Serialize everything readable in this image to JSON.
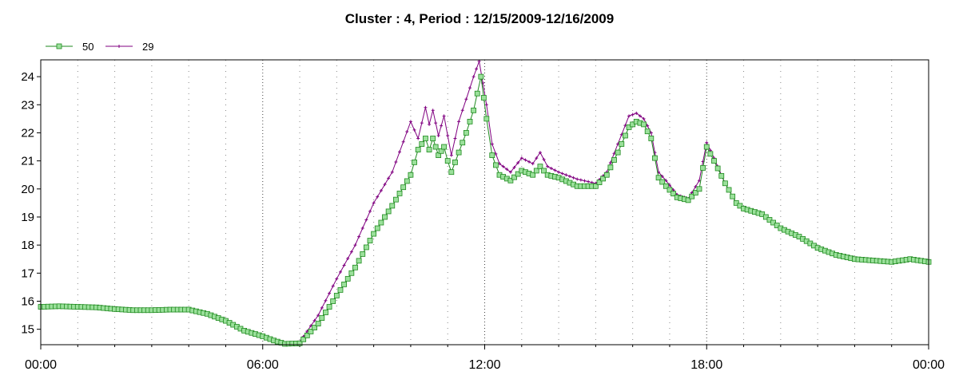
{
  "chart_data": {
    "type": "line",
    "title": "Cluster : 4, Period : 12/15/2009-12/16/2009",
    "xlabel": "",
    "ylabel": "",
    "x_tick_labels": [
      "00:00",
      "06:00",
      "12:00",
      "18:00",
      "00:00"
    ],
    "y_ticks": [
      15,
      16,
      17,
      18,
      19,
      20,
      21,
      22,
      23,
      24
    ],
    "xlim_hours": [
      0,
      24
    ],
    "ylim": [
      14.45,
      24.6
    ],
    "grid": "dotted-vertical",
    "legend_position": "top-left",
    "series": [
      {
        "name": "50",
        "color": "#1e8a1e",
        "marker_fill": "#9be09b",
        "marker": "square",
        "points": [
          [
            0.0,
            15.8
          ],
          [
            0.5,
            15.82
          ],
          [
            1.0,
            15.8
          ],
          [
            1.5,
            15.78
          ],
          [
            2.0,
            15.72
          ],
          [
            2.5,
            15.68
          ],
          [
            3.0,
            15.68
          ],
          [
            3.5,
            15.7
          ],
          [
            4.0,
            15.7
          ],
          [
            4.5,
            15.55
          ],
          [
            5.0,
            15.3
          ],
          [
            5.5,
            14.95
          ],
          [
            6.0,
            14.75
          ],
          [
            6.3,
            14.6
          ],
          [
            6.6,
            14.48
          ],
          [
            7.0,
            14.5
          ],
          [
            7.5,
            15.2
          ],
          [
            8.0,
            16.2
          ],
          [
            8.5,
            17.2
          ],
          [
            9.0,
            18.4
          ],
          [
            9.5,
            19.4
          ],
          [
            10.0,
            20.5
          ],
          [
            10.2,
            21.4
          ],
          [
            10.4,
            21.8
          ],
          [
            10.5,
            21.4
          ],
          [
            10.6,
            21.8
          ],
          [
            10.75,
            21.2
          ],
          [
            10.9,
            21.5
          ],
          [
            11.0,
            21.0
          ],
          [
            11.1,
            20.6
          ],
          [
            11.3,
            21.3
          ],
          [
            11.5,
            22.0
          ],
          [
            11.7,
            22.8
          ],
          [
            11.9,
            24.0
          ],
          [
            12.05,
            22.5
          ],
          [
            12.2,
            21.2
          ],
          [
            12.4,
            20.5
          ],
          [
            12.7,
            20.3
          ],
          [
            13.0,
            20.65
          ],
          [
            13.3,
            20.5
          ],
          [
            13.5,
            20.8
          ],
          [
            13.7,
            20.5
          ],
          [
            14.0,
            20.4
          ],
          [
            14.5,
            20.1
          ],
          [
            15.0,
            20.1
          ],
          [
            15.3,
            20.5
          ],
          [
            15.6,
            21.3
          ],
          [
            15.9,
            22.2
          ],
          [
            16.1,
            22.4
          ],
          [
            16.3,
            22.3
          ],
          [
            16.5,
            21.8
          ],
          [
            16.7,
            20.4
          ],
          [
            16.9,
            20.1
          ],
          [
            17.2,
            19.7
          ],
          [
            17.5,
            19.6
          ],
          [
            17.8,
            20.0
          ],
          [
            18.0,
            21.5
          ],
          [
            18.2,
            21.0
          ],
          [
            18.5,
            20.2
          ],
          [
            18.8,
            19.5
          ],
          [
            19.0,
            19.3
          ],
          [
            19.5,
            19.1
          ],
          [
            20.0,
            18.6
          ],
          [
            20.5,
            18.3
          ],
          [
            21.0,
            17.9
          ],
          [
            21.5,
            17.65
          ],
          [
            22.0,
            17.5
          ],
          [
            22.5,
            17.45
          ],
          [
            23.0,
            17.4
          ],
          [
            23.5,
            17.5
          ],
          [
            24.0,
            17.4
          ]
        ]
      },
      {
        "name": "29",
        "color": "#800080",
        "marker": "plus",
        "points": [
          [
            0.0,
            15.8
          ],
          [
            0.5,
            15.82
          ],
          [
            1.0,
            15.8
          ],
          [
            1.5,
            15.78
          ],
          [
            2.0,
            15.72
          ],
          [
            2.5,
            15.68
          ],
          [
            3.0,
            15.68
          ],
          [
            3.5,
            15.7
          ],
          [
            4.0,
            15.7
          ],
          [
            4.5,
            15.55
          ],
          [
            5.0,
            15.3
          ],
          [
            5.5,
            14.95
          ],
          [
            6.0,
            14.75
          ],
          [
            6.3,
            14.6
          ],
          [
            6.6,
            14.48
          ],
          [
            7.0,
            14.55
          ],
          [
            7.5,
            15.5
          ],
          [
            8.0,
            16.8
          ],
          [
            8.5,
            18.0
          ],
          [
            9.0,
            19.5
          ],
          [
            9.5,
            20.6
          ],
          [
            10.0,
            22.4
          ],
          [
            10.2,
            21.8
          ],
          [
            10.4,
            22.9
          ],
          [
            10.5,
            22.3
          ],
          [
            10.6,
            22.8
          ],
          [
            10.75,
            21.9
          ],
          [
            10.9,
            22.6
          ],
          [
            11.0,
            21.9
          ],
          [
            11.1,
            21.2
          ],
          [
            11.3,
            22.4
          ],
          [
            11.5,
            23.2
          ],
          [
            11.7,
            24.0
          ],
          [
            11.85,
            24.55
          ],
          [
            12.05,
            23.0
          ],
          [
            12.2,
            21.6
          ],
          [
            12.4,
            20.9
          ],
          [
            12.7,
            20.6
          ],
          [
            13.0,
            21.1
          ],
          [
            13.3,
            20.9
          ],
          [
            13.5,
            21.3
          ],
          [
            13.7,
            20.8
          ],
          [
            14.0,
            20.6
          ],
          [
            14.5,
            20.35
          ],
          [
            15.0,
            20.2
          ],
          [
            15.3,
            20.6
          ],
          [
            15.6,
            21.6
          ],
          [
            15.9,
            22.6
          ],
          [
            16.1,
            22.7
          ],
          [
            16.3,
            22.5
          ],
          [
            16.5,
            22.0
          ],
          [
            16.7,
            20.6
          ],
          [
            16.9,
            20.3
          ],
          [
            17.2,
            19.8
          ],
          [
            17.5,
            19.65
          ],
          [
            17.8,
            20.3
          ],
          [
            18.0,
            21.65
          ],
          [
            18.2,
            21.1
          ],
          [
            18.5,
            20.2
          ],
          [
            18.8,
            19.5
          ],
          [
            19.0,
            19.3
          ],
          [
            19.5,
            19.1
          ],
          [
            20.0,
            18.6
          ],
          [
            20.5,
            18.3
          ],
          [
            21.0,
            17.9
          ],
          [
            21.5,
            17.65
          ],
          [
            22.0,
            17.5
          ],
          [
            22.5,
            17.45
          ],
          [
            23.0,
            17.4
          ],
          [
            23.5,
            17.5
          ],
          [
            24.0,
            17.4
          ]
        ]
      }
    ]
  }
}
